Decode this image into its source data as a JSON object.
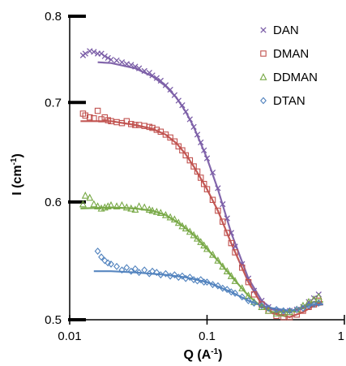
{
  "chart_data": {
    "type": "scatter",
    "x_scale": "log",
    "y_scale": "log",
    "xlim": [
      0.01,
      1
    ],
    "ylim": [
      0.5,
      0.8
    ],
    "x_ticks": [
      0.01,
      0.1,
      1
    ],
    "x_tick_labels": [
      "0.01",
      "0.1",
      "1"
    ],
    "y_ticks": [
      0.5,
      0.6,
      0.7,
      0.8
    ],
    "y_tick_labels": [
      "0.5",
      "0.6",
      "0.7",
      "0.8"
    ],
    "xlabel_main": "Q (A",
    "xlabel_sup": "-1",
    "xlabel_end": ")",
    "ylabel_main": "I (cm",
    "ylabel_sup": "-1",
    "ylabel_end": ")",
    "grid": false,
    "legend_position": "top-right",
    "series": [
      {
        "name": "DAN",
        "marker": "x",
        "color": "#7b5ea7",
        "points": [
          [
            0.0125,
            0.753
          ],
          [
            0.013,
            0.755
          ],
          [
            0.014,
            0.758
          ],
          [
            0.015,
            0.757
          ],
          [
            0.016,
            0.755
          ],
          [
            0.017,
            0.755
          ],
          [
            0.018,
            0.752
          ],
          [
            0.019,
            0.75
          ],
          [
            0.02,
            0.748
          ],
          [
            0.022,
            0.747
          ],
          [
            0.024,
            0.745
          ],
          [
            0.026,
            0.743
          ],
          [
            0.028,
            0.742
          ],
          [
            0.03,
            0.74
          ],
          [
            0.032,
            0.738
          ],
          [
            0.035,
            0.735
          ],
          [
            0.038,
            0.733
          ],
          [
            0.04,
            0.73
          ],
          [
            0.043,
            0.727
          ],
          [
            0.046,
            0.724
          ],
          [
            0.05,
            0.719
          ],
          [
            0.054,
            0.714
          ],
          [
            0.058,
            0.708
          ],
          [
            0.062,
            0.702
          ],
          [
            0.066,
            0.697
          ],
          [
            0.07,
            0.69
          ],
          [
            0.075,
            0.682
          ],
          [
            0.08,
            0.674
          ],
          [
            0.085,
            0.666
          ],
          [
            0.09,
            0.658
          ],
          [
            0.095,
            0.65
          ],
          [
            0.1,
            0.642
          ],
          [
            0.11,
            0.628
          ],
          [
            0.12,
            0.613
          ],
          [
            0.13,
            0.598
          ],
          [
            0.14,
            0.585
          ],
          [
            0.15,
            0.572
          ],
          [
            0.16,
            0.56
          ],
          [
            0.18,
            0.545
          ],
          [
            0.2,
            0.533
          ],
          [
            0.22,
            0.523
          ],
          [
            0.25,
            0.515
          ],
          [
            0.28,
            0.51
          ],
          [
            0.32,
            0.507
          ],
          [
            0.36,
            0.506
          ],
          [
            0.4,
            0.507
          ],
          [
            0.45,
            0.508
          ],
          [
            0.5,
            0.51
          ],
          [
            0.55,
            0.514
          ],
          [
            0.6,
            0.517
          ],
          [
            0.65,
            0.52
          ]
        ],
        "fit": [
          [
            0.016,
            0.745
          ],
          [
            0.02,
            0.744
          ],
          [
            0.03,
            0.738
          ],
          [
            0.04,
            0.729
          ],
          [
            0.05,
            0.718
          ],
          [
            0.06,
            0.705
          ],
          [
            0.07,
            0.69
          ],
          [
            0.08,
            0.674
          ],
          [
            0.1,
            0.642
          ],
          [
            0.12,
            0.612
          ],
          [
            0.15,
            0.572
          ],
          [
            0.2,
            0.533
          ],
          [
            0.25,
            0.515
          ],
          [
            0.3,
            0.508
          ],
          [
            0.4,
            0.506
          ],
          [
            0.5,
            0.509
          ],
          [
            0.6,
            0.514
          ],
          [
            0.7,
            0.512
          ]
        ]
      },
      {
        "name": "DMAN",
        "marker": "square",
        "color": "#c0504d",
        "points": [
          [
            0.0125,
            0.688
          ],
          [
            0.013,
            0.686
          ],
          [
            0.014,
            0.684
          ],
          [
            0.015,
            0.683
          ],
          [
            0.016,
            0.691
          ],
          [
            0.017,
            0.682
          ],
          [
            0.018,
            0.684
          ],
          [
            0.019,
            0.681
          ],
          [
            0.02,
            0.68
          ],
          [
            0.022,
            0.679
          ],
          [
            0.024,
            0.678
          ],
          [
            0.026,
            0.68
          ],
          [
            0.028,
            0.677
          ],
          [
            0.03,
            0.676
          ],
          [
            0.032,
            0.676
          ],
          [
            0.035,
            0.675
          ],
          [
            0.038,
            0.674
          ],
          [
            0.04,
            0.673
          ],
          [
            0.043,
            0.671
          ],
          [
            0.046,
            0.669
          ],
          [
            0.05,
            0.666
          ],
          [
            0.054,
            0.663
          ],
          [
            0.058,
            0.659
          ],
          [
            0.062,
            0.654
          ],
          [
            0.066,
            0.65
          ],
          [
            0.07,
            0.645
          ],
          [
            0.075,
            0.64
          ],
          [
            0.08,
            0.634
          ],
          [
            0.085,
            0.629
          ],
          [
            0.09,
            0.623
          ],
          [
            0.095,
            0.617
          ],
          [
            0.1,
            0.612
          ],
          [
            0.11,
            0.602
          ],
          [
            0.12,
            0.592
          ],
          [
            0.13,
            0.582
          ],
          [
            0.14,
            0.572
          ],
          [
            0.15,
            0.563
          ],
          [
            0.16,
            0.555
          ],
          [
            0.18,
            0.542
          ],
          [
            0.2,
            0.53
          ],
          [
            0.22,
            0.52
          ],
          [
            0.25,
            0.512
          ],
          [
            0.28,
            0.507
          ],
          [
            0.32,
            0.503
          ],
          [
            0.36,
            0.502
          ],
          [
            0.4,
            0.502
          ],
          [
            0.45,
            0.504
          ],
          [
            0.5,
            0.507
          ],
          [
            0.55,
            0.51
          ],
          [
            0.6,
            0.512
          ],
          [
            0.65,
            0.515
          ]
        ],
        "fit": [
          [
            0.012,
            0.68
          ],
          [
            0.02,
            0.68
          ],
          [
            0.03,
            0.676
          ],
          [
            0.04,
            0.672
          ],
          [
            0.05,
            0.666
          ],
          [
            0.06,
            0.657
          ],
          [
            0.07,
            0.646
          ],
          [
            0.08,
            0.634
          ],
          [
            0.1,
            0.612
          ],
          [
            0.12,
            0.592
          ],
          [
            0.15,
            0.563
          ],
          [
            0.2,
            0.53
          ],
          [
            0.25,
            0.512
          ],
          [
            0.3,
            0.505
          ],
          [
            0.4,
            0.502
          ],
          [
            0.5,
            0.506
          ],
          [
            0.6,
            0.511
          ],
          [
            0.7,
            0.512
          ]
        ]
      },
      {
        "name": "DDMAN",
        "marker": "triangle",
        "color": "#77a845",
        "points": [
          [
            0.0125,
            0.598
          ],
          [
            0.013,
            0.606
          ],
          [
            0.014,
            0.604
          ],
          [
            0.015,
            0.598
          ],
          [
            0.016,
            0.596
          ],
          [
            0.017,
            0.594
          ],
          [
            0.018,
            0.595
          ],
          [
            0.019,
            0.596
          ],
          [
            0.02,
            0.597
          ],
          [
            0.022,
            0.596
          ],
          [
            0.024,
            0.597
          ],
          [
            0.026,
            0.595
          ],
          [
            0.028,
            0.594
          ],
          [
            0.03,
            0.593
          ],
          [
            0.032,
            0.596
          ],
          [
            0.035,
            0.595
          ],
          [
            0.038,
            0.593
          ],
          [
            0.04,
            0.592
          ],
          [
            0.043,
            0.591
          ],
          [
            0.046,
            0.59
          ],
          [
            0.05,
            0.588
          ],
          [
            0.054,
            0.586
          ],
          [
            0.058,
            0.584
          ],
          [
            0.062,
            0.581
          ],
          [
            0.066,
            0.578
          ],
          [
            0.07,
            0.576
          ],
          [
            0.075,
            0.573
          ],
          [
            0.08,
            0.57
          ],
          [
            0.085,
            0.567
          ],
          [
            0.09,
            0.564
          ],
          [
            0.095,
            0.561
          ],
          [
            0.1,
            0.558
          ],
          [
            0.11,
            0.553
          ],
          [
            0.12,
            0.548
          ],
          [
            0.13,
            0.543
          ],
          [
            0.14,
            0.539
          ],
          [
            0.15,
            0.535
          ],
          [
            0.16,
            0.531
          ],
          [
            0.18,
            0.525
          ],
          [
            0.2,
            0.519
          ],
          [
            0.22,
            0.514
          ],
          [
            0.25,
            0.51
          ],
          [
            0.28,
            0.507
          ],
          [
            0.32,
            0.505
          ],
          [
            0.36,
            0.505
          ],
          [
            0.4,
            0.506
          ],
          [
            0.45,
            0.508
          ],
          [
            0.5,
            0.511
          ],
          [
            0.55,
            0.514
          ],
          [
            0.6,
            0.516
          ],
          [
            0.65,
            0.518
          ]
        ],
        "fit": [
          [
            0.012,
            0.594
          ],
          [
            0.02,
            0.595
          ],
          [
            0.03,
            0.594
          ],
          [
            0.04,
            0.592
          ],
          [
            0.05,
            0.588
          ],
          [
            0.06,
            0.582
          ],
          [
            0.07,
            0.576
          ],
          [
            0.08,
            0.57
          ],
          [
            0.1,
            0.558
          ],
          [
            0.12,
            0.548
          ],
          [
            0.15,
            0.535
          ],
          [
            0.2,
            0.519
          ],
          [
            0.25,
            0.51
          ],
          [
            0.3,
            0.506
          ],
          [
            0.4,
            0.506
          ],
          [
            0.5,
            0.51
          ],
          [
            0.6,
            0.514
          ],
          [
            0.7,
            0.514
          ]
        ]
      },
      {
        "name": "DTAN",
        "marker": "diamond",
        "color": "#4f81bd",
        "points": [
          [
            0.016,
            0.556
          ],
          [
            0.017,
            0.551
          ],
          [
            0.018,
            0.548
          ],
          [
            0.019,
            0.546
          ],
          [
            0.02,
            0.545
          ],
          [
            0.022,
            0.543
          ],
          [
            0.024,
            0.54
          ],
          [
            0.026,
            0.542
          ],
          [
            0.028,
            0.539
          ],
          [
            0.03,
            0.541
          ],
          [
            0.032,
            0.538
          ],
          [
            0.035,
            0.54
          ],
          [
            0.038,
            0.537
          ],
          [
            0.04,
            0.539
          ],
          [
            0.043,
            0.538
          ],
          [
            0.046,
            0.536
          ],
          [
            0.05,
            0.537
          ],
          [
            0.054,
            0.535
          ],
          [
            0.058,
            0.536
          ],
          [
            0.062,
            0.534
          ],
          [
            0.066,
            0.535
          ],
          [
            0.07,
            0.533
          ],
          [
            0.075,
            0.534
          ],
          [
            0.08,
            0.532
          ],
          [
            0.085,
            0.531
          ],
          [
            0.09,
            0.532
          ],
          [
            0.095,
            0.53
          ],
          [
            0.1,
            0.53
          ],
          [
            0.11,
            0.528
          ],
          [
            0.12,
            0.527
          ],
          [
            0.13,
            0.525
          ],
          [
            0.14,
            0.524
          ],
          [
            0.15,
            0.522
          ],
          [
            0.16,
            0.521
          ],
          [
            0.18,
            0.518
          ],
          [
            0.2,
            0.515
          ],
          [
            0.22,
            0.513
          ],
          [
            0.25,
            0.511
          ],
          [
            0.28,
            0.509
          ],
          [
            0.32,
            0.508
          ],
          [
            0.36,
            0.507
          ],
          [
            0.4,
            0.507
          ],
          [
            0.45,
            0.508
          ],
          [
            0.5,
            0.509
          ],
          [
            0.55,
            0.511
          ],
          [
            0.6,
            0.512
          ],
          [
            0.65,
            0.513
          ]
        ],
        "fit": [
          [
            0.015,
            0.539
          ],
          [
            0.02,
            0.539
          ],
          [
            0.03,
            0.538
          ],
          [
            0.05,
            0.536
          ],
          [
            0.07,
            0.534
          ],
          [
            0.1,
            0.53
          ],
          [
            0.15,
            0.522
          ],
          [
            0.2,
            0.515
          ],
          [
            0.25,
            0.511
          ],
          [
            0.3,
            0.509
          ],
          [
            0.4,
            0.507
          ],
          [
            0.5,
            0.509
          ],
          [
            0.6,
            0.512
          ],
          [
            0.7,
            0.512
          ]
        ]
      }
    ]
  }
}
